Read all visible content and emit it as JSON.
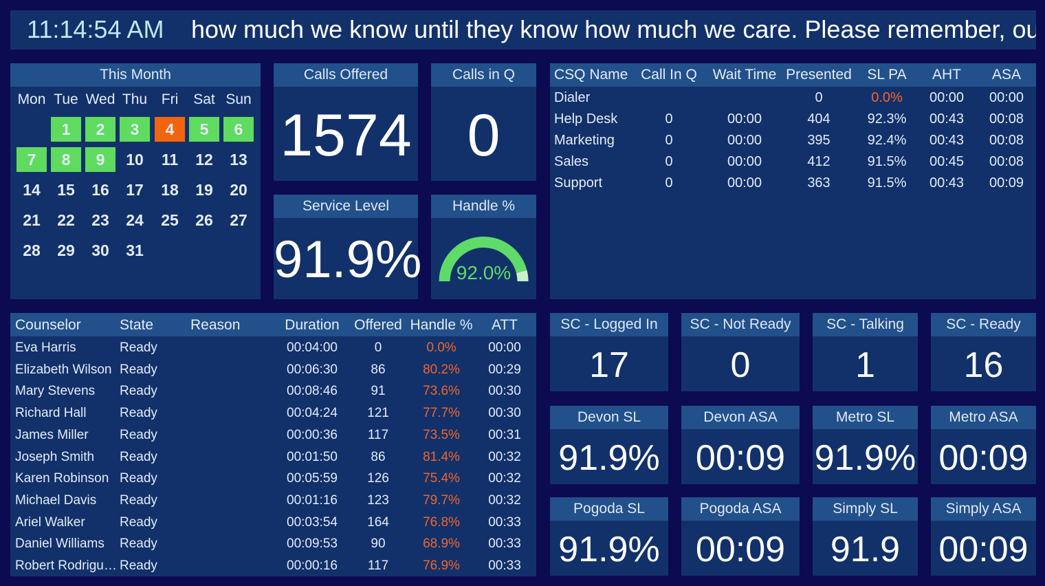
{
  "clock": "11:14:54 AM",
  "ticker": "how much we know until they know how much we care.  Please remember, our",
  "calendar": {
    "title": "This Month",
    "weekdays": [
      "Mon",
      "Tue",
      "Wed",
      "Thu",
      "Fri",
      "Sat",
      "Sun"
    ],
    "weeks": [
      [
        null,
        {
          "day": 1,
          "color": "#5fdb5f"
        },
        {
          "day": 2,
          "color": "#5fdb5f"
        },
        {
          "day": 3,
          "color": "#5fdb5f"
        },
        {
          "day": 4,
          "color": "#f2650f"
        },
        {
          "day": 5,
          "color": "#5fdb5f"
        },
        {
          "day": 6,
          "color": "#5fdb5f"
        }
      ],
      [
        {
          "day": 7,
          "color": "#5fdb5f"
        },
        {
          "day": 8,
          "color": "#5fdb5f"
        },
        {
          "day": 9,
          "color": "#5fdb5f"
        },
        {
          "day": 10
        },
        {
          "day": 11
        },
        {
          "day": 12
        },
        {
          "day": 13
        }
      ],
      [
        {
          "day": 14
        },
        {
          "day": 15
        },
        {
          "day": 16
        },
        {
          "day": 17
        },
        {
          "day": 18
        },
        {
          "day": 19
        },
        {
          "day": 20
        }
      ],
      [
        {
          "day": 21
        },
        {
          "day": 22
        },
        {
          "day": 23
        },
        {
          "day": 24
        },
        {
          "day": 25
        },
        {
          "day": 26
        },
        {
          "day": 27
        }
      ],
      [
        {
          "day": 28
        },
        {
          "day": 29
        },
        {
          "day": 30
        },
        {
          "day": 31
        }
      ]
    ]
  },
  "calls_offered": {
    "title": "Calls Offered",
    "value": 1574
  },
  "calls_in_q": {
    "title": "Calls in Q",
    "value": 0
  },
  "service_level": {
    "title": "Service Level",
    "value": "91.9%"
  },
  "handle": {
    "title": "Handle %",
    "value": 92,
    "label": "92.0%",
    "range": [
      0,
      100
    ],
    "color": "#5fdb6a",
    "track_color": "#c9efc9"
  },
  "csq": {
    "columns": [
      "CSQ Name",
      "Call In Q",
      "Wait Time",
      "Presented",
      "SL PA",
      "AHT",
      "ASA"
    ],
    "rows": [
      [
        "Dialer",
        null,
        null,
        "0",
        {
          "text": "0.0%",
          "color": "#f2652a"
        },
        "00:00",
        "00:00"
      ],
      [
        "Help Desk",
        "0",
        "00:00",
        "404",
        "92.3%",
        "00:43",
        "00:08"
      ],
      [
        "Marketing",
        "0",
        "00:00",
        "395",
        "92.4%",
        "00:43",
        "00:08"
      ],
      [
        "Sales",
        "0",
        "00:00",
        "412",
        "91.5%",
        "00:45",
        "00:08"
      ],
      [
        "Support",
        "0",
        "00:00",
        "363",
        "91.5%",
        "00:43",
        "00:09"
      ]
    ]
  },
  "counselors": {
    "columns": [
      "Counselor",
      "State",
      "Reason",
      "Duration",
      "Offered",
      "Handle %",
      "ATT"
    ],
    "handle_color": "#f2652a",
    "rows": [
      [
        "Eva Harris",
        "Ready",
        "",
        "00:04:00",
        "0",
        "0.0%",
        "00:00"
      ],
      [
        "Elizabeth Wilson",
        "Ready",
        "",
        "00:06:30",
        "86",
        "80.2%",
        "00:29"
      ],
      [
        "Mary Stevens",
        "Ready",
        "",
        "00:08:46",
        "91",
        "73.6%",
        "00:30"
      ],
      [
        "Richard Hall",
        "Ready",
        "",
        "00:04:24",
        "121",
        "77.7%",
        "00:30"
      ],
      [
        "James Miller",
        "Ready",
        "",
        "00:00:36",
        "117",
        "73.5%",
        "00:31"
      ],
      [
        "Joseph Smith",
        "Ready",
        "",
        "00:01:50",
        "86",
        "81.4%",
        "00:32"
      ],
      [
        "Karen Robinson",
        "Ready",
        "",
        "00:05:59",
        "126",
        "75.4%",
        "00:32"
      ],
      [
        "Michael Davis",
        "Ready",
        "",
        "00:01:16",
        "123",
        "79.7%",
        "00:32"
      ],
      [
        "Ariel Walker",
        "Ready",
        "",
        "00:03:54",
        "164",
        "76.8%",
        "00:33"
      ],
      [
        "Daniel Williams",
        "Ready",
        "",
        "00:09:53",
        "90",
        "68.9%",
        "00:33"
      ],
      [
        "Robert Rodrigu…",
        "Ready",
        "",
        "00:00:16",
        "117",
        "76.9%",
        "00:33"
      ]
    ]
  },
  "tiles": [
    [
      {
        "title": "SC - Logged In",
        "value": "17"
      },
      {
        "title": "SC - Not Ready",
        "value": "0"
      },
      {
        "title": "SC - Talking",
        "value": "1"
      },
      {
        "title": "SC - Ready",
        "value": "16"
      }
    ],
    [
      {
        "title": "Devon SL",
        "value": "91.9%"
      },
      {
        "title": "Devon ASA",
        "value": "00:09"
      },
      {
        "title": "Metro SL",
        "value": "91.9%"
      },
      {
        "title": "Metro ASA",
        "value": "00:09"
      }
    ],
    [
      {
        "title": "Pogoda SL",
        "value": "91.9%"
      },
      {
        "title": "Pogoda ASA",
        "value": "00:09"
      },
      {
        "title": "Simply SL",
        "value": "91.9"
      },
      {
        "title": "Simply ASA",
        "value": "00:09"
      }
    ]
  ]
}
